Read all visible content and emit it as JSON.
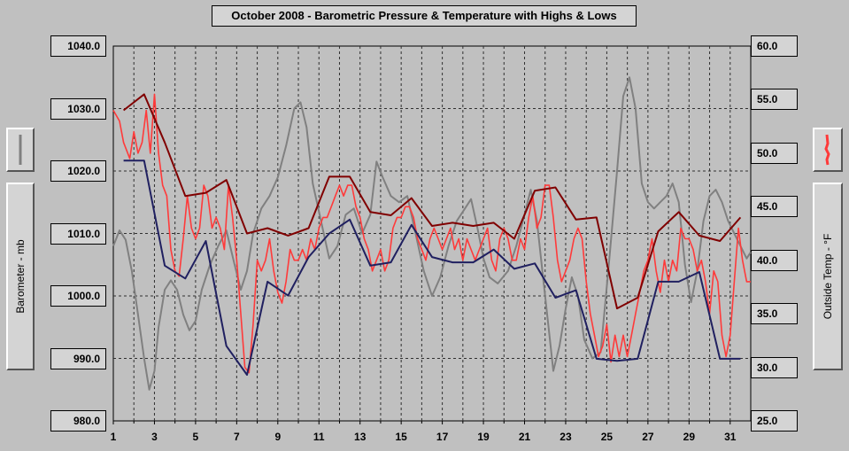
{
  "chart_data": {
    "type": "line",
    "title": "October 2008 - Barometric Pressure & Temperature with Highs & Lows",
    "x_ticks": [
      "1",
      "3",
      "5",
      "7",
      "9",
      "11",
      "13",
      "15",
      "17",
      "19",
      "21",
      "23",
      "25",
      "27",
      "29",
      "31"
    ],
    "x_range": [
      1,
      32
    ],
    "left_axis": {
      "label": "Barometer - mb",
      "min": 980,
      "max": 1040,
      "ticks": [
        "1040.0",
        "1030.0",
        "1020.0",
        "1010.0",
        "1000.0",
        "990.0",
        "980.0"
      ]
    },
    "right_axis": {
      "label": "Outside Temp - °F",
      "min": 25,
      "max": 60,
      "ticks": [
        "60.0",
        "55.0",
        "50.0",
        "45.0",
        "40.0",
        "35.0",
        "30.0",
        "25.0"
      ]
    },
    "grid": true,
    "series": [
      {
        "axis": "left",
        "color": "#808080",
        "points": [
          [
            1,
            1008
          ],
          [
            1.3,
            1010.5
          ],
          [
            1.6,
            1009
          ],
          [
            1.9,
            1004
          ],
          [
            2.2,
            997
          ],
          [
            2.5,
            990
          ],
          [
            2.75,
            985
          ],
          [
            3,
            988
          ],
          [
            3.2,
            995
          ],
          [
            3.5,
            1001
          ],
          [
            3.8,
            1002.5
          ],
          [
            4.1,
            1001
          ],
          [
            4.4,
            997
          ],
          [
            4.7,
            994.5
          ],
          [
            5,
            996
          ],
          [
            5.3,
            1001
          ],
          [
            5.7,
            1005
          ],
          [
            6.1,
            1008
          ],
          [
            6.5,
            1010.5
          ],
          [
            6.9,
            1005
          ],
          [
            7.2,
            1001
          ],
          [
            7.5,
            1004
          ],
          [
            7.8,
            1010
          ],
          [
            8.2,
            1014
          ],
          [
            8.6,
            1016
          ],
          [
            9,
            1019
          ],
          [
            9.4,
            1024
          ],
          [
            9.8,
            1030
          ],
          [
            10.1,
            1031
          ],
          [
            10.4,
            1027
          ],
          [
            10.7,
            1018
          ],
          [
            11.1,
            1012
          ],
          [
            11.5,
            1006
          ],
          [
            11.9,
            1008
          ],
          [
            12.3,
            1013
          ],
          [
            12.7,
            1014
          ],
          [
            13.1,
            1010
          ],
          [
            13.5,
            1013
          ],
          [
            13.8,
            1021.5
          ],
          [
            14.1,
            1019
          ],
          [
            14.5,
            1016
          ],
          [
            14.9,
            1015
          ],
          [
            15.3,
            1016
          ],
          [
            15.7,
            1010
          ],
          [
            16.1,
            1004
          ],
          [
            16.5,
            1000
          ],
          [
            16.9,
            1003
          ],
          [
            17.3,
            1008
          ],
          [
            17.7,
            1012
          ],
          [
            18.1,
            1014
          ],
          [
            18.4,
            1015.5
          ],
          [
            18.7,
            1011
          ],
          [
            19,
            1006
          ],
          [
            19.3,
            1003
          ],
          [
            19.7,
            1002
          ],
          [
            20.2,
            1004
          ],
          [
            20.6,
            1008
          ],
          [
            21,
            1013
          ],
          [
            21.3,
            1017
          ],
          [
            21.6,
            1012
          ],
          [
            21.9,
            1003
          ],
          [
            22.2,
            994
          ],
          [
            22.4,
            988
          ],
          [
            22.7,
            992
          ],
          [
            23,
            998
          ],
          [
            23.3,
            1003
          ],
          [
            23.6,
            1000
          ],
          [
            23.9,
            993
          ],
          [
            24.3,
            990
          ],
          [
            24.7,
            991
          ],
          [
            25.1,
            1005
          ],
          [
            25.5,
            1020
          ],
          [
            25.8,
            1032
          ],
          [
            26.1,
            1035
          ],
          [
            26.4,
            1030
          ],
          [
            26.7,
            1018
          ],
          [
            27,
            1015
          ],
          [
            27.3,
            1014
          ],
          [
            27.6,
            1015
          ],
          [
            27.9,
            1016
          ],
          [
            28.2,
            1018
          ],
          [
            28.5,
            1015
          ],
          [
            28.8,
            1005
          ],
          [
            29.1,
            999
          ],
          [
            29.4,
            1004
          ],
          [
            29.7,
            1012
          ],
          [
            30,
            1016
          ],
          [
            30.3,
            1017
          ],
          [
            30.6,
            1015
          ],
          [
            30.9,
            1012
          ],
          [
            31.2,
            1010
          ],
          [
            31.5,
            1008
          ],
          [
            31.8,
            1006
          ],
          [
            32,
            1007
          ]
        ]
      },
      {
        "axis": "right",
        "color": "#ff3a3a",
        "points": [
          [
            1,
            54
          ],
          [
            1.3,
            53
          ],
          [
            1.5,
            51
          ],
          [
            1.8,
            49.5
          ],
          [
            2,
            52
          ],
          [
            2.2,
            50
          ],
          [
            2.4,
            51
          ],
          [
            2.6,
            54
          ],
          [
            2.8,
            50
          ],
          [
            3,
            55.5
          ],
          [
            3.2,
            50
          ],
          [
            3.4,
            47
          ],
          [
            3.6,
            46
          ],
          [
            3.8,
            41
          ],
          [
            4,
            39
          ],
          [
            4.2,
            38.5
          ],
          [
            4.4,
            42
          ],
          [
            4.6,
            46
          ],
          [
            4.8,
            43
          ],
          [
            5,
            42
          ],
          [
            5.2,
            43
          ],
          [
            5.4,
            47
          ],
          [
            5.6,
            46
          ],
          [
            5.8,
            43
          ],
          [
            6,
            44
          ],
          [
            6.2,
            43
          ],
          [
            6.4,
            41
          ],
          [
            6.6,
            47
          ],
          [
            6.8,
            44
          ],
          [
            7,
            40
          ],
          [
            7.2,
            35
          ],
          [
            7.4,
            30
          ],
          [
            7.6,
            29.5
          ],
          [
            7.8,
            34
          ],
          [
            8,
            40
          ],
          [
            8.2,
            39
          ],
          [
            8.4,
            40
          ],
          [
            8.6,
            42
          ],
          [
            8.8,
            39
          ],
          [
            9,
            37
          ],
          [
            9.2,
            36
          ],
          [
            9.4,
            38
          ],
          [
            9.6,
            41
          ],
          [
            9.8,
            40
          ],
          [
            10,
            40
          ],
          [
            10.2,
            41
          ],
          [
            10.4,
            40
          ],
          [
            10.6,
            42
          ],
          [
            10.8,
            41
          ],
          [
            11,
            43
          ],
          [
            11.2,
            44
          ],
          [
            11.4,
            44
          ],
          [
            11.6,
            45
          ],
          [
            11.8,
            46
          ],
          [
            12,
            47
          ],
          [
            12.2,
            46
          ],
          [
            12.4,
            47
          ],
          [
            12.6,
            47
          ],
          [
            12.8,
            45
          ],
          [
            13,
            44
          ],
          [
            13.2,
            42
          ],
          [
            13.4,
            41
          ],
          [
            13.6,
            39
          ],
          [
            13.8,
            40
          ],
          [
            14,
            41
          ],
          [
            14.2,
            39
          ],
          [
            14.4,
            40
          ],
          [
            14.6,
            43
          ],
          [
            14.8,
            44
          ],
          [
            15,
            44
          ],
          [
            15.2,
            45
          ],
          [
            15.4,
            45
          ],
          [
            15.6,
            44
          ],
          [
            15.8,
            42
          ],
          [
            16,
            41
          ],
          [
            16.2,
            40
          ],
          [
            16.4,
            42
          ],
          [
            16.6,
            43
          ],
          [
            16.8,
            42
          ],
          [
            17,
            41
          ],
          [
            17.2,
            42
          ],
          [
            17.4,
            43
          ],
          [
            17.6,
            41
          ],
          [
            17.8,
            42
          ],
          [
            18,
            40
          ],
          [
            18.2,
            42
          ],
          [
            18.4,
            41
          ],
          [
            18.6,
            40
          ],
          [
            18.8,
            41
          ],
          [
            19,
            42
          ],
          [
            19.2,
            43
          ],
          [
            19.4,
            40
          ],
          [
            19.6,
            39
          ],
          [
            19.8,
            42
          ],
          [
            20,
            43
          ],
          [
            20.2,
            42
          ],
          [
            20.4,
            40
          ],
          [
            20.6,
            40
          ],
          [
            20.8,
            42
          ],
          [
            21,
            41
          ],
          [
            21.2,
            44
          ],
          [
            21.4,
            46
          ],
          [
            21.6,
            43
          ],
          [
            21.8,
            44
          ],
          [
            22,
            47
          ],
          [
            22.2,
            47
          ],
          [
            22.4,
            44
          ],
          [
            22.6,
            40
          ],
          [
            22.8,
            38
          ],
          [
            23,
            39
          ],
          [
            23.2,
            40
          ],
          [
            23.4,
            42
          ],
          [
            23.6,
            43
          ],
          [
            23.8,
            42
          ],
          [
            24,
            38
          ],
          [
            24.2,
            35
          ],
          [
            24.4,
            33
          ],
          [
            24.6,
            31
          ],
          [
            24.8,
            32
          ],
          [
            25,
            34
          ],
          [
            25.2,
            30.5
          ],
          [
            25.4,
            33
          ],
          [
            25.6,
            31
          ],
          [
            25.8,
            33
          ],
          [
            26,
            31
          ],
          [
            26.2,
            33
          ],
          [
            26.4,
            35
          ],
          [
            26.6,
            37
          ],
          [
            26.8,
            39
          ],
          [
            27,
            40
          ],
          [
            27.2,
            42
          ],
          [
            27.4,
            39
          ],
          [
            27.6,
            37
          ],
          [
            27.8,
            40
          ],
          [
            28,
            38
          ],
          [
            28.2,
            40
          ],
          [
            28.4,
            39
          ],
          [
            28.6,
            43
          ],
          [
            28.8,
            42
          ],
          [
            29,
            42
          ],
          [
            29.2,
            41
          ],
          [
            29.4,
            39
          ],
          [
            29.6,
            40
          ],
          [
            29.8,
            38
          ],
          [
            30,
            35
          ],
          [
            30.2,
            39
          ],
          [
            30.4,
            38
          ],
          [
            30.6,
            33
          ],
          [
            30.8,
            31
          ],
          [
            31,
            33
          ],
          [
            31.2,
            38
          ],
          [
            31.4,
            43
          ],
          [
            31.6,
            40
          ],
          [
            31.8,
            38
          ],
          [
            32,
            38
          ]
        ]
      },
      {
        "axis": "right",
        "color": "#800000",
        "name": "",
        "points": [
          [
            1.5,
            54
          ],
          [
            2.5,
            55.5
          ],
          [
            3.5,
            51
          ],
          [
            4.5,
            46
          ],
          [
            5.5,
            46.3
          ],
          [
            6.5,
            47.5
          ],
          [
            7.5,
            42.5
          ],
          [
            8.5,
            43
          ],
          [
            9.5,
            42.3
          ],
          [
            10.5,
            43
          ],
          [
            11.5,
            47.8
          ],
          [
            12.5,
            47.8
          ],
          [
            13.5,
            44.5
          ],
          [
            14.5,
            44.2
          ],
          [
            15.5,
            45.8
          ],
          [
            16.5,
            43.2
          ],
          [
            17.5,
            43.5
          ],
          [
            18.5,
            43.2
          ],
          [
            19.5,
            43.5
          ],
          [
            20.5,
            42
          ],
          [
            21.5,
            46.5
          ],
          [
            22.5,
            46.8
          ],
          [
            23.5,
            43.8
          ],
          [
            24.5,
            44
          ],
          [
            25.5,
            35.5
          ],
          [
            26.5,
            36.5
          ],
          [
            27.5,
            42.7
          ],
          [
            28.5,
            44.5
          ],
          [
            29.5,
            42.3
          ],
          [
            30.5,
            41.8
          ],
          [
            31.5,
            44
          ]
        ]
      },
      {
        "axis": "right",
        "color": "#202060",
        "name": "",
        "points": [
          [
            1.5,
            49.3
          ],
          [
            2.5,
            49.3
          ],
          [
            3.5,
            39.5
          ],
          [
            4.5,
            38.3
          ],
          [
            5.5,
            41.8
          ],
          [
            6.5,
            32
          ],
          [
            7.5,
            29.3
          ],
          [
            8.5,
            38
          ],
          [
            9.5,
            36.7
          ],
          [
            10.5,
            40.3
          ],
          [
            11.5,
            42.5
          ],
          [
            12.5,
            43.8
          ],
          [
            13.5,
            39.5
          ],
          [
            14.5,
            39.8
          ],
          [
            15.5,
            43.3
          ],
          [
            16.5,
            40.3
          ],
          [
            17.5,
            39.8
          ],
          [
            18.5,
            39.8
          ],
          [
            19.5,
            41
          ],
          [
            20.5,
            39.2
          ],
          [
            21.5,
            39.7
          ],
          [
            22.5,
            36.5
          ],
          [
            23.5,
            37.2
          ],
          [
            24.5,
            30.8
          ],
          [
            25.5,
            30.6
          ],
          [
            26.5,
            30.8
          ],
          [
            27.5,
            38
          ],
          [
            28.5,
            38
          ],
          [
            29.5,
            38.9
          ],
          [
            30.5,
            30.8
          ],
          [
            31.5,
            30.8
          ]
        ]
      }
    ]
  },
  "panels": {
    "left_indicator_icon": "gray-line-icon",
    "right_indicator_icon": "red-line-icon"
  }
}
